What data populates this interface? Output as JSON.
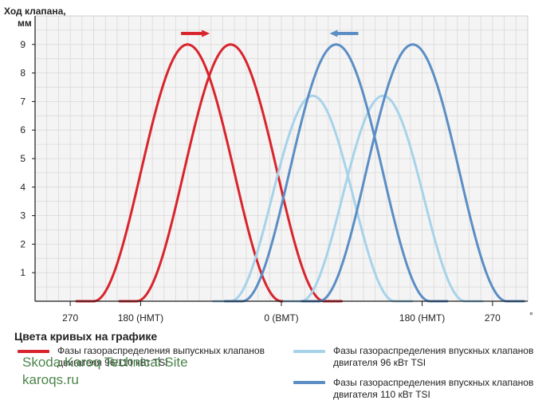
{
  "chart_data": {
    "type": "line",
    "ylabel_line1": "Ход клапана,",
    "ylabel_line2": "мм",
    "x_unit": "°",
    "xlim": [
      -315,
      315
    ],
    "ylim": [
      0,
      10
    ],
    "y_ticks": [
      1,
      2,
      3,
      4,
      5,
      6,
      7,
      8,
      9
    ],
    "x_ticks": [
      {
        "value": -270,
        "label": "270"
      },
      {
        "value": -180,
        "label": "180 (НМТ)"
      },
      {
        "value": 0,
        "label": "0 (ВМТ)"
      },
      {
        "value": 180,
        "label": "180 (НМТ)"
      },
      {
        "value": 270,
        "label": "270"
      }
    ],
    "grid": true,
    "series": [
      {
        "name": "exhaust-96",
        "color": "#d8242c",
        "center": -120,
        "half_width": 120,
        "peak": 9.0
      },
      {
        "name": "exhaust-110",
        "color": "#d8242c",
        "center": -65,
        "half_width": 120,
        "peak": 9.0
      },
      {
        "name": "intake-96-a",
        "color": "#a7d3ea",
        "center": 40,
        "half_width": 105,
        "peak": 7.2
      },
      {
        "name": "intake-96-b",
        "color": "#a7d3ea",
        "center": 130,
        "half_width": 105,
        "peak": 7.2
      },
      {
        "name": "intake-110-a",
        "color": "#5b8ec4",
        "center": 70,
        "half_width": 120,
        "peak": 9.0
      },
      {
        "name": "intake-110-b",
        "color": "#5b8ec4",
        "center": 168,
        "half_width": 120,
        "peak": 9.0
      }
    ],
    "arrows": [
      {
        "direction": "right",
        "color": "#d8242c"
      },
      {
        "direction": "left",
        "color": "#5b8ec4"
      }
    ]
  },
  "legend": {
    "title": "Цвета кривых на графике",
    "items": [
      {
        "color": "#d8242c",
        "line1": "Фазы газораспределения выпускных клапанов",
        "line2": "двигателя 96/110 кВт TSI"
      },
      {
        "color": "#a7d3ea",
        "line1": "Фазы газораспределения впускных клапанов",
        "line2": "двигателя 96 кВт TSI"
      },
      {
        "color": "#5b8ec4",
        "line1": "Фазы газораспределения впускных клапанов",
        "line2": "двигателя 110 кВт TSI"
      }
    ]
  },
  "watermark": {
    "line1": "Skoda Karoq Technical Site",
    "line2": "karoqs.ru"
  }
}
